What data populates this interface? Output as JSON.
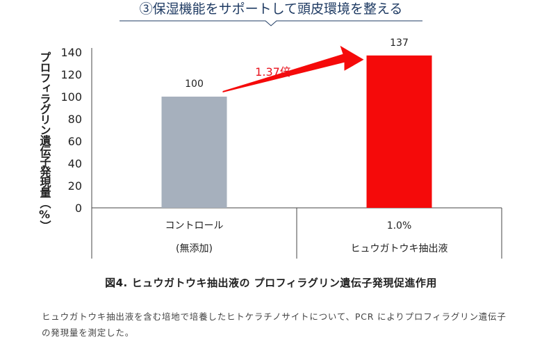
{
  "heading": "③保湿機能をサポートして頭皮環境を整える",
  "chart_data": {
    "type": "bar",
    "title": "",
    "ylabel": "プロフィラグリン遺伝子発現量（%）",
    "xlabel": "",
    "ylim": [
      0,
      140
    ],
    "yticks": [
      0,
      20,
      40,
      60,
      80,
      100,
      120,
      140
    ],
    "categories": [
      {
        "label": "コントロール",
        "sublabel": "(無添加)"
      },
      {
        "label": "1.0%",
        "sublabel": "ヒュウガトウキ抽出液"
      }
    ],
    "values": [
      100,
      137
    ],
    "value_labels": [
      "100",
      "137"
    ],
    "colors": [
      "#a6b0bd",
      "#f50a0a"
    ],
    "annotation": {
      "text": "1.37倍",
      "color": "#e8121d"
    },
    "grid": false
  },
  "caption": "図4. ヒュウガトウキ抽出液の プロフィラグリン遺伝子発現促進作用",
  "description": "ヒュウガトウキ抽出液を含む培地で培養したヒトケラチノサイトについて、PCR によりプロフィラグリン遺伝子の発現量を測定した。"
}
